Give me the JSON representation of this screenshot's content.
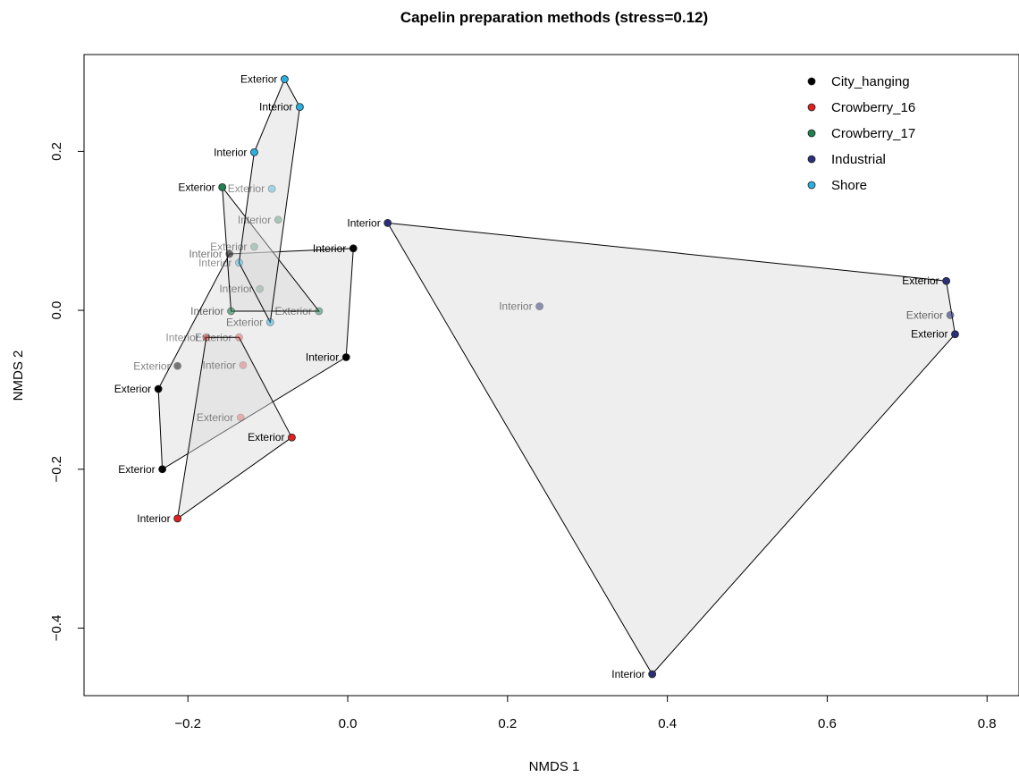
{
  "chart_data": {
    "type": "scatter",
    "title": "Capelin preparation methods (stress=0.12)",
    "xlabel": "NMDS 1",
    "ylabel": "NMDS 2",
    "xlim": [
      -0.33,
      0.84
    ],
    "ylim": [
      -0.485,
      0.322
    ],
    "xticks": [
      -0.2,
      0.0,
      0.2,
      0.4,
      0.6,
      0.8
    ],
    "xtick_labels": [
      "−0.2",
      "0.0",
      "0.2",
      "0.4",
      "0.6",
      "0.8"
    ],
    "yticks": [
      -0.4,
      -0.2,
      0.0,
      0.2
    ],
    "ytick_labels": [
      "−0.4",
      "−0.2",
      "0.0",
      "0.2"
    ],
    "grid": false,
    "legend_position": "top-right",
    "hull_fill": "#d9d9d9",
    "series": [
      {
        "name": "City_hanging",
        "color": "#000000",
        "points": [
          {
            "label": "Interior",
            "x": 0.007,
            "y": 0.078,
            "opacity": 1.0
          },
          {
            "label": "Interior",
            "x": -0.148,
            "y": 0.071,
            "opacity": 0.55
          },
          {
            "label": "Interior",
            "x": -0.002,
            "y": -0.059,
            "opacity": 1.0
          },
          {
            "label": "Exterior",
            "x": -0.213,
            "y": -0.07,
            "opacity": 0.5
          },
          {
            "label": "Exterior",
            "x": -0.237,
            "y": -0.099,
            "opacity": 1.0
          },
          {
            "label": "Exterior",
            "x": -0.232,
            "y": -0.2,
            "opacity": 1.0
          }
        ],
        "hull": [
          [
            0.007,
            0.078
          ],
          [
            -0.148,
            0.071
          ],
          [
            -0.237,
            -0.099
          ],
          [
            -0.232,
            -0.2
          ],
          [
            -0.002,
            -0.059
          ]
        ]
      },
      {
        "name": "Crowberry_16",
        "color": "#df2020",
        "points": [
          {
            "label": "Interior",
            "x": -0.177,
            "y": -0.034,
            "opacity": 0.45
          },
          {
            "label": "Exterior",
            "x": -0.136,
            "y": -0.034,
            "opacity": 0.35
          },
          {
            "label": "Interior",
            "x": -0.131,
            "y": -0.069,
            "opacity": 0.28
          },
          {
            "label": "Exterior",
            "x": -0.134,
            "y": -0.135,
            "opacity": 0.28
          },
          {
            "label": "Exterior",
            "x": -0.07,
            "y": -0.16,
            "opacity": 1.0
          },
          {
            "label": "Interior",
            "x": -0.213,
            "y": -0.262,
            "opacity": 1.0
          }
        ],
        "hull": [
          [
            -0.177,
            -0.034
          ],
          [
            -0.136,
            -0.034
          ],
          [
            -0.07,
            -0.16
          ],
          [
            -0.213,
            -0.262
          ]
        ]
      },
      {
        "name": "Crowberry_17",
        "color": "#208050",
        "points": [
          {
            "label": "Exterior",
            "x": -0.157,
            "y": 0.155,
            "opacity": 1.0
          },
          {
            "label": "Interior",
            "x": -0.087,
            "y": 0.114,
            "opacity": 0.35
          },
          {
            "label": "Exterior",
            "x": -0.117,
            "y": 0.08,
            "opacity": 0.28
          },
          {
            "label": "Interior",
            "x": -0.11,
            "y": 0.027,
            "opacity": 0.25
          },
          {
            "label": "Exterior",
            "x": -0.036,
            "y": -0.001,
            "opacity": 0.5
          },
          {
            "label": "Interior",
            "x": -0.146,
            "y": -0.001,
            "opacity": 0.6
          }
        ],
        "hull": [
          [
            -0.157,
            0.155
          ],
          [
            -0.036,
            -0.001
          ],
          [
            -0.146,
            -0.001
          ]
        ]
      },
      {
        "name": "Industrial",
        "color": "#2a2f7a",
        "points": [
          {
            "label": "Interior",
            "x": 0.05,
            "y": 0.11,
            "opacity": 1.0
          },
          {
            "label": "Interior",
            "x": 0.24,
            "y": 0.005,
            "opacity": 0.5
          },
          {
            "label": "Exterior",
            "x": 0.749,
            "y": 0.037,
            "opacity": 1.0
          },
          {
            "label": "Exterior",
            "x": 0.754,
            "y": -0.006,
            "opacity": 0.6
          },
          {
            "label": "Exterior",
            "x": 0.76,
            "y": -0.03,
            "opacity": 1.0
          },
          {
            "label": "Interior",
            "x": 0.381,
            "y": -0.458,
            "opacity": 1.0
          }
        ],
        "hull": [
          [
            0.05,
            0.11
          ],
          [
            0.749,
            0.037
          ],
          [
            0.76,
            -0.03
          ],
          [
            0.381,
            -0.458
          ]
        ]
      },
      {
        "name": "Shore",
        "color": "#2ab0e0",
        "points": [
          {
            "label": "Exterior",
            "x": -0.079,
            "y": 0.291,
            "opacity": 1.0
          },
          {
            "label": "Interior",
            "x": -0.06,
            "y": 0.256,
            "opacity": 1.0
          },
          {
            "label": "Interior",
            "x": -0.117,
            "y": 0.199,
            "opacity": 1.0
          },
          {
            "label": "Exterior",
            "x": -0.095,
            "y": 0.153,
            "opacity": 0.4
          },
          {
            "label": "Interior",
            "x": -0.136,
            "y": 0.06,
            "opacity": 0.4
          },
          {
            "label": "Exterior",
            "x": -0.097,
            "y": -0.015,
            "opacity": 0.5
          }
        ],
        "hull": [
          [
            -0.079,
            0.291
          ],
          [
            -0.06,
            0.256
          ],
          [
            -0.097,
            -0.015
          ],
          [
            -0.136,
            0.06
          ],
          [
            -0.117,
            0.199
          ]
        ]
      }
    ]
  }
}
